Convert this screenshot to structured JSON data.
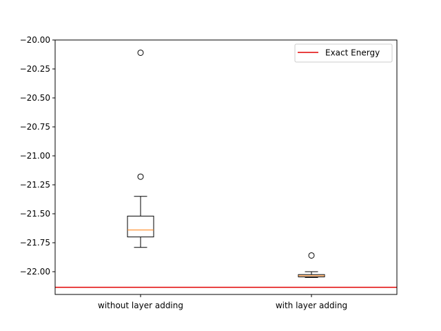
{
  "chart_data": {
    "type": "boxplot",
    "title": "",
    "xlabel": "",
    "ylabel": "",
    "ylim": [
      -22.2,
      -20.0
    ],
    "yticks": [
      -20.0,
      -20.25,
      -20.5,
      -20.75,
      -21.0,
      -21.25,
      -21.5,
      -21.75,
      -22.0
    ],
    "ytick_labels": [
      "−20.00",
      "−20.25",
      "−20.50",
      "−20.75",
      "−21.00",
      "−21.25",
      "−21.50",
      "−21.75",
      "−22.00"
    ],
    "categories": [
      "without layer adding",
      "with layer adding"
    ],
    "boxes": [
      {
        "whisker_low": -21.79,
        "q1": -21.7,
        "median": -21.64,
        "q3": -21.52,
        "whisker_high": -21.35,
        "outliers": [
          -20.11,
          -21.18
        ]
      },
      {
        "whisker_low": -22.05,
        "q1": -22.045,
        "median": -22.035,
        "q3": -22.025,
        "whisker_high": -22.0,
        "outliers": [
          -21.86
        ]
      }
    ],
    "reference_line": {
      "label": "Exact Energy",
      "value": -22.135,
      "color": "#e00000"
    },
    "legend": {
      "position": "top-right",
      "entries": [
        "Exact Energy"
      ]
    },
    "grid": false,
    "colors": {
      "median": "#ff7f0e",
      "box": "#000000",
      "reference": "#e00000"
    }
  }
}
